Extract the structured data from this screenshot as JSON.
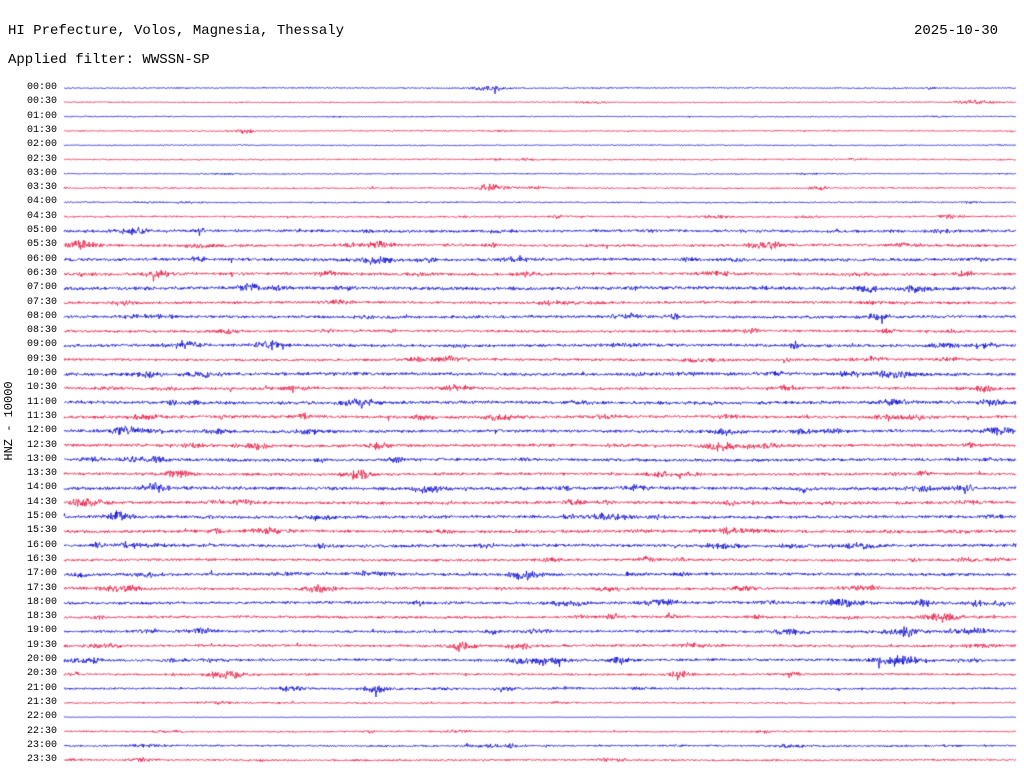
{
  "header": {
    "title": "HI Prefecture, Volos, Magnesia, Thessaly",
    "date": "2025-10-30",
    "filter_label": "Applied filter: WWSSN-SP"
  },
  "axis": {
    "ylabel": "HNZ - 10000"
  },
  "colors": {
    "b": "#0000cd",
    "r": "#e8103c"
  },
  "chart_data": {
    "type": "line",
    "subtype": "helicorder-seismogram",
    "title": "HI Prefecture, Volos, Magnesia, Thessaly",
    "date": "2025-10-30",
    "filter": "WWSSN-SP",
    "ylabel": "HNZ - 10000",
    "minutes_per_row": 30,
    "row_count": 48,
    "legend": "alternating blue/red traces per 30-minute segment, amplitudes in px half-height, events as [fraction_of_row, amplitude]",
    "rows": [
      {
        "t": "00:00",
        "color": "b",
        "amp": 0.7,
        "n": 2,
        "seed": 11,
        "events": [
          [
            0.447,
            2.2
          ]
        ]
      },
      {
        "t": "00:30",
        "color": "r",
        "amp": 0.7,
        "n": 2,
        "seed": 23,
        "events": [
          [
            0.957,
            2.0
          ]
        ]
      },
      {
        "t": "01:00",
        "color": "b",
        "amp": 0.65,
        "n": 2,
        "seed": 37,
        "events": []
      },
      {
        "t": "01:30",
        "color": "r",
        "amp": 0.75,
        "n": 2,
        "seed": 41,
        "events": [
          [
            0.19,
            2.4
          ]
        ]
      },
      {
        "t": "02:00",
        "color": "b",
        "amp": 0.65,
        "n": 2,
        "seed": 53,
        "events": []
      },
      {
        "t": "02:30",
        "color": "r",
        "amp": 0.85,
        "n": 3,
        "seed": 67,
        "events": []
      },
      {
        "t": "03:00",
        "color": "b",
        "amp": 0.7,
        "n": 2,
        "seed": 71,
        "events": []
      },
      {
        "t": "03:30",
        "color": "r",
        "amp": 0.95,
        "n": 3,
        "seed": 83,
        "events": [
          [
            0.452,
            3.2
          ]
        ]
      },
      {
        "t": "04:00",
        "color": "b",
        "amp": 0.8,
        "n": 3,
        "seed": 97,
        "events": []
      },
      {
        "t": "04:30",
        "color": "r",
        "amp": 1.05,
        "n": 5,
        "seed": 101,
        "events": []
      },
      {
        "t": "05:00",
        "color": "b",
        "amp": 1.6,
        "n": 8,
        "seed": 113,
        "events": []
      },
      {
        "t": "05:30",
        "color": "r",
        "amp": 1.6,
        "n": 7,
        "seed": 127,
        "events": [
          [
            0.022,
            3.0
          ],
          [
            0.332,
            3.0
          ]
        ]
      },
      {
        "t": "06:00",
        "color": "b",
        "amp": 1.7,
        "n": 8,
        "seed": 131,
        "events": []
      },
      {
        "t": "06:30",
        "color": "r",
        "amp": 1.6,
        "n": 7,
        "seed": 139,
        "events": [
          [
            0.1,
            3.4
          ]
        ]
      },
      {
        "t": "07:00",
        "color": "b",
        "amp": 1.95,
        "n": 8,
        "seed": 149,
        "events": [
          [
            0.894,
            2.5
          ]
        ]
      },
      {
        "t": "07:30",
        "color": "r",
        "amp": 1.55,
        "n": 6,
        "seed": 151,
        "events": []
      },
      {
        "t": "08:00",
        "color": "b",
        "amp": 1.6,
        "n": 7,
        "seed": 163,
        "events": []
      },
      {
        "t": "08:30",
        "color": "r",
        "amp": 1.45,
        "n": 6,
        "seed": 167,
        "events": []
      },
      {
        "t": "09:00",
        "color": "b",
        "amp": 1.65,
        "n": 7,
        "seed": 173,
        "events": [
          [
            0.216,
            3.0
          ],
          [
            0.967,
            3.0
          ]
        ]
      },
      {
        "t": "09:30",
        "color": "r",
        "amp": 1.45,
        "n": 6,
        "seed": 179,
        "events": [
          [
            0.405,
            2.5
          ],
          [
            0.852,
            2.5
          ]
        ]
      },
      {
        "t": "10:00",
        "color": "b",
        "amp": 1.85,
        "n": 8,
        "seed": 181,
        "events": []
      },
      {
        "t": "10:30",
        "color": "r",
        "amp": 1.55,
        "n": 6,
        "seed": 191,
        "events": [
          [
            0.967,
            3.0
          ]
        ]
      },
      {
        "t": "11:00",
        "color": "b",
        "amp": 1.9,
        "n": 8,
        "seed": 193,
        "events": []
      },
      {
        "t": "11:30",
        "color": "r",
        "amp": 1.7,
        "n": 7,
        "seed": 197,
        "events": [
          [
            0.458,
            3.0
          ],
          [
            0.862,
            3.0
          ]
        ]
      },
      {
        "t": "12:00",
        "color": "b",
        "amp": 1.7,
        "n": 7,
        "seed": 199,
        "events": [
          [
            0.07,
            3.0
          ],
          [
            0.805,
            2.5
          ]
        ]
      },
      {
        "t": "12:30",
        "color": "r",
        "amp": 1.7,
        "n": 7,
        "seed": 211,
        "events": [
          [
            0.332,
            3.0
          ],
          [
            0.689,
            3.5
          ]
        ]
      },
      {
        "t": "13:00",
        "color": "b",
        "amp": 1.7,
        "n": 7,
        "seed": 223,
        "events": []
      },
      {
        "t": "13:30",
        "color": "r",
        "amp": 1.6,
        "n": 6,
        "seed": 227,
        "events": [
          [
            0.31,
            3.0
          ],
          [
            0.626,
            2.5
          ]
        ]
      },
      {
        "t": "14:00",
        "color": "b",
        "amp": 1.8,
        "n": 7,
        "seed": 229,
        "events": [
          [
            0.1,
            3.5
          ],
          [
            0.385,
            3.0
          ]
        ]
      },
      {
        "t": "14:30",
        "color": "r",
        "amp": 1.7,
        "n": 7,
        "seed": 233,
        "events": [
          [
            0.022,
            3.5
          ],
          [
            0.537,
            2.5
          ]
        ]
      },
      {
        "t": "15:00",
        "color": "b",
        "amp": 1.7,
        "n": 7,
        "seed": 239,
        "events": [
          [
            0.574,
            3.0
          ]
        ]
      },
      {
        "t": "15:30",
        "color": "r",
        "amp": 1.7,
        "n": 7,
        "seed": 241,
        "events": [
          [
            0.216,
            3.0
          ],
          [
            0.7,
            3.5
          ]
        ]
      },
      {
        "t": "16:00",
        "color": "b",
        "amp": 1.7,
        "n": 7,
        "seed": 251,
        "events": [
          [
            0.069,
            3.0
          ],
          [
            0.836,
            2.5
          ]
        ]
      },
      {
        "t": "16:30",
        "color": "r",
        "amp": 1.5,
        "n": 6,
        "seed": 257,
        "events": []
      },
      {
        "t": "17:00",
        "color": "b",
        "amp": 1.65,
        "n": 7,
        "seed": 263,
        "events": [
          [
            0.49,
            3.5
          ]
        ]
      },
      {
        "t": "17:30",
        "color": "r",
        "amp": 1.6,
        "n": 6,
        "seed": 269,
        "events": [
          [
            0.269,
            3.0
          ],
          [
            0.574,
            2.5
          ]
        ]
      },
      {
        "t": "18:00",
        "color": "b",
        "amp": 1.6,
        "n": 7,
        "seed": 271,
        "events": [
          [
            0.626,
            3.0
          ],
          [
            0.82,
            3.0
          ],
          [
            0.9,
            3.0
          ]
        ]
      },
      {
        "t": "18:30",
        "color": "r",
        "amp": 1.5,
        "n": 6,
        "seed": 277,
        "events": [
          [
            0.92,
            3.5
          ],
          [
            0.574,
            2.5
          ]
        ]
      },
      {
        "t": "19:00",
        "color": "b",
        "amp": 1.45,
        "n": 6,
        "seed": 281,
        "events": [
          [
            0.763,
            3.0
          ],
          [
            0.883,
            3.0
          ],
          [
            0.957,
            2.5
          ]
        ]
      },
      {
        "t": "19:30",
        "color": "r",
        "amp": 1.45,
        "n": 6,
        "seed": 283,
        "events": [
          [
            0.416,
            3.0
          ],
          [
            0.479,
            3.0
          ]
        ]
      },
      {
        "t": "20:00",
        "color": "b",
        "amp": 1.5,
        "n": 7,
        "seed": 293,
        "events": [
          [
            0.022,
            3.5
          ],
          [
            0.49,
            4.0
          ],
          [
            0.584,
            3.5
          ],
          [
            0.868,
            3.0
          ]
        ]
      },
      {
        "t": "20:30",
        "color": "r",
        "amp": 1.25,
        "n": 5,
        "seed": 307,
        "events": [
          [
            0.174,
            4.0
          ],
          [
            0.647,
            4.5
          ]
        ]
      },
      {
        "t": "21:00",
        "color": "b",
        "amp": 1.15,
        "n": 4,
        "seed": 311,
        "events": [
          [
            0.237,
            2.5
          ],
          [
            0.327,
            4.5
          ]
        ]
      },
      {
        "t": "21:30",
        "color": "r",
        "amp": 0.95,
        "n": 3,
        "seed": 313,
        "events": []
      },
      {
        "t": "22:00",
        "color": "b",
        "amp": 0.3,
        "n": 0,
        "seed": 317,
        "events": []
      },
      {
        "t": "22:30",
        "color": "r",
        "amp": 0.95,
        "n": 3,
        "seed": 331,
        "events": [
          [
            0.11,
            1.6
          ]
        ]
      },
      {
        "t": "23:00",
        "color": "b",
        "amp": 1.1,
        "n": 4,
        "seed": 337,
        "events": []
      },
      {
        "t": "23:30",
        "color": "r",
        "amp": 1.1,
        "n": 4,
        "seed": 347,
        "events": [
          [
            0.08,
            1.6
          ]
        ]
      }
    ]
  }
}
